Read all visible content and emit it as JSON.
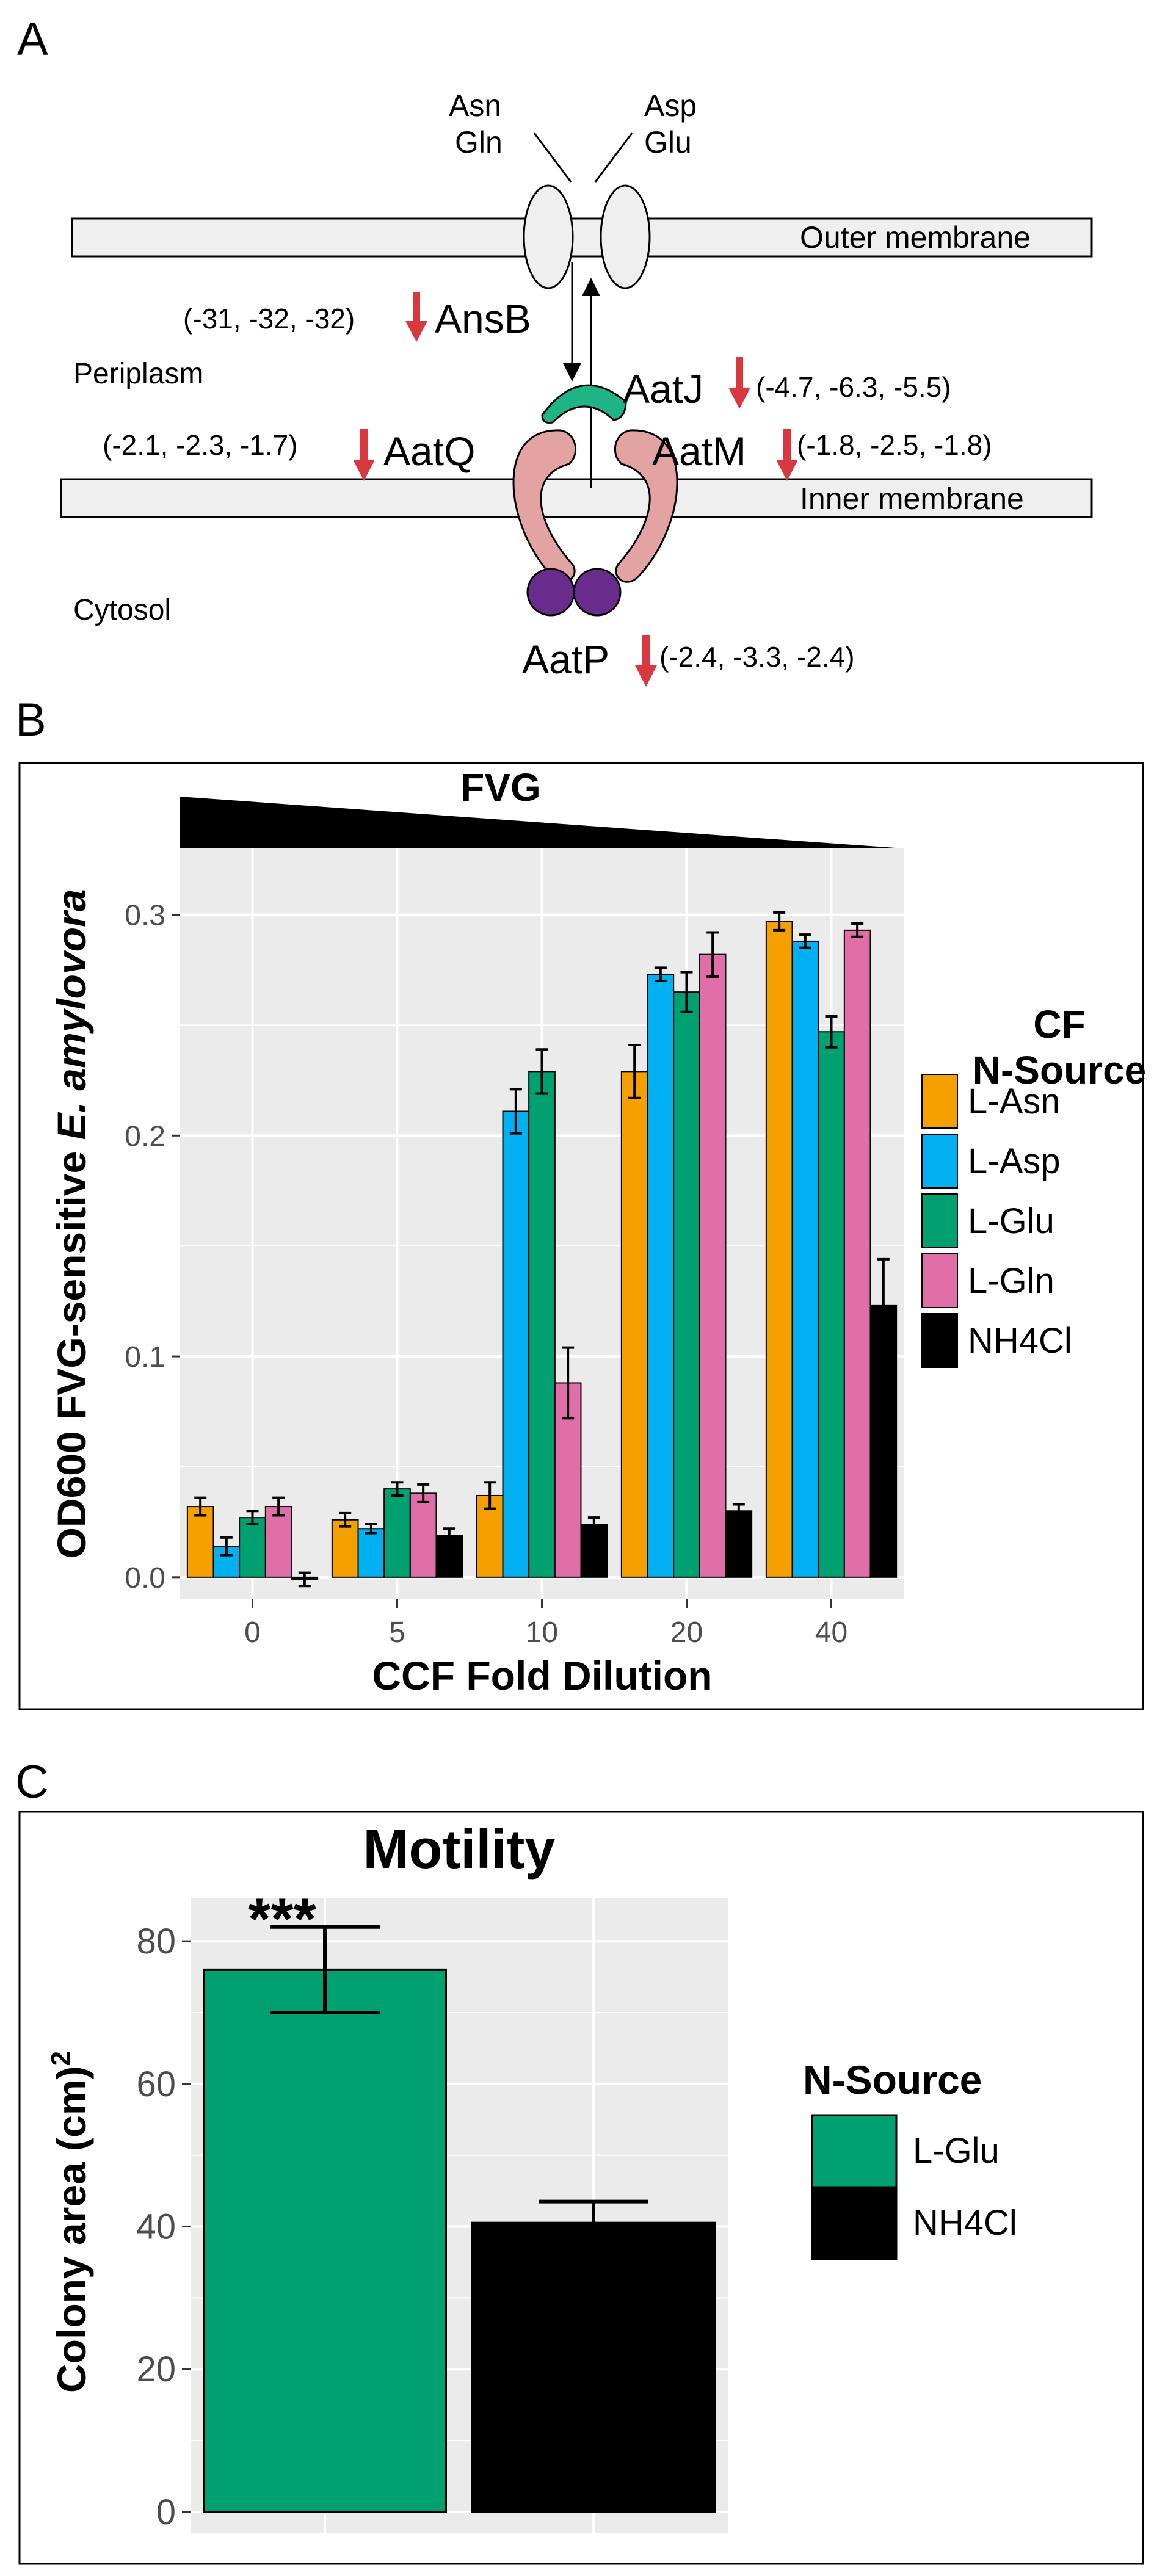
{
  "panels": {
    "a": "A",
    "b": "B",
    "c": "C"
  },
  "colors": {
    "asn": "#F6A000",
    "asp": "#00B0F0",
    "glu": "#00A070",
    "gln": "#E06FA8",
    "nh4": "#000000",
    "membrane": "#EFEFEF",
    "protein": "#E3A3A3",
    "aatj": "#1EB486",
    "aatp": "#6A2C8C",
    "arrow": "#D9393E",
    "plotbg": "#EBEBEB"
  },
  "diagram": {
    "substrates_left": [
      "Asn",
      "Gln"
    ],
    "substrates_right": [
      "Asp",
      "Glu"
    ],
    "outer_membrane": "Outer membrane",
    "inner_membrane": "Inner membrane",
    "periplasm": "Periplasm",
    "cytosol": "Cytosol",
    "genes": {
      "ansb": {
        "name": "AnsB",
        "fc": "(-31, -32, -32)"
      },
      "aatj": {
        "name": "AatJ",
        "fc": "(-4.7, -6.3, -5.5)"
      },
      "aatq": {
        "name": "AatQ",
        "fc": "(-2.1, -2.3, -1.7)"
      },
      "aatm": {
        "name": "AatM",
        "fc": "(-1.8, -2.5, -1.8)"
      },
      "aatp": {
        "name": "AatP",
        "fc": "(-2.4, -3.3, -2.4)"
      }
    }
  },
  "chart_data": [
    {
      "type": "bar",
      "panel": "B",
      "title": "FVG",
      "xlabel": "CCF Fold Dilution",
      "ylabel_prefix": "OD600 FVG-sensitive ",
      "ylabel_species": "E. amylovora",
      "categories": [
        "0",
        "5",
        "10",
        "20",
        "40"
      ],
      "ylim": [
        -0.01,
        0.33
      ],
      "yticks": [
        0.0,
        0.1,
        0.2,
        0.3
      ],
      "ytick_labels": [
        "0.0",
        "0.1",
        "0.2",
        "0.3"
      ],
      "legend_title": [
        "CF",
        "N-Source"
      ],
      "series": [
        {
          "name": "L-Asn",
          "color_key": "asn",
          "values": [
            0.032,
            0.026,
            0.037,
            0.229,
            0.297
          ],
          "errors": [
            0.004,
            0.003,
            0.006,
            0.012,
            0.004
          ]
        },
        {
          "name": "L-Asp",
          "color_key": "asp",
          "values": [
            0.014,
            0.022,
            0.211,
            0.273,
            0.288
          ],
          "errors": [
            0.004,
            0.002,
            0.01,
            0.003,
            0.003
          ]
        },
        {
          "name": "L-Glu",
          "color_key": "glu",
          "values": [
            0.027,
            0.04,
            0.229,
            0.265,
            0.247
          ],
          "errors": [
            0.003,
            0.003,
            0.01,
            0.009,
            0.007
          ]
        },
        {
          "name": "L-Gln",
          "color_key": "gln",
          "values": [
            0.032,
            0.038,
            0.088,
            0.282,
            0.293
          ],
          "errors": [
            0.004,
            0.004,
            0.016,
            0.01,
            0.003
          ]
        },
        {
          "name": "NH4Cl",
          "color_key": "nh4",
          "values": [
            -0.001,
            0.019,
            0.024,
            0.03,
            0.123
          ],
          "errors": [
            0.003,
            0.003,
            0.003,
            0.003,
            0.021
          ]
        }
      ]
    },
    {
      "type": "bar",
      "panel": "C",
      "title": "Motility",
      "xlabel": "",
      "ylabel": "Colony area (cm)",
      "ylabel_sup": "2",
      "categories": [
        "L-Glu",
        "NH4Cl"
      ],
      "values": [
        76,
        40.5
      ],
      "errors": [
        6,
        3
      ],
      "bar_color_keys": [
        "glu",
        "nh4"
      ],
      "ylim": [
        -3,
        86
      ],
      "yticks": [
        0,
        20,
        40,
        60,
        80
      ],
      "ytick_labels": [
        "0",
        "20",
        "40",
        "60",
        "80"
      ],
      "significance": "***",
      "legend_title": "N-Source",
      "legend": [
        "L-Glu",
        "NH4Cl"
      ]
    }
  ]
}
